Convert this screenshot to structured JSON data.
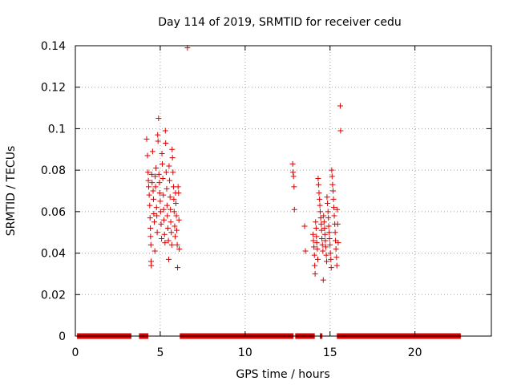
{
  "chart_data": {
    "type": "scatter",
    "title": "Day 114 of 2019, SRMTID for receiver cedu",
    "xlabel": "GPS time / hours",
    "ylabel": "SRMTID / TECUs",
    "xlim": [
      0,
      24.5
    ],
    "ylim": [
      0,
      0.14
    ],
    "grid": true,
    "marker": "+",
    "color": "#dd0000",
    "x_ticks": [
      0,
      5,
      10,
      15,
      20
    ],
    "y_ticks": [
      0,
      0.02,
      0.04,
      0.06,
      0.08,
      0.1,
      0.12,
      0.14
    ],
    "x_tick_labels": [
      "0",
      "5",
      "10",
      "15",
      "20"
    ],
    "y_tick_labels": [
      "0",
      "0.02",
      "0.04",
      "0.06",
      "0.08",
      "0.1",
      "0.12",
      "0.14"
    ],
    "zero_segments": [
      [
        0.1,
        3.3
      ],
      [
        3.75,
        4.3
      ],
      [
        6.15,
        12.85
      ],
      [
        12.95,
        14.1
      ],
      [
        14.4,
        14.55
      ],
      [
        15.4,
        22.7
      ]
    ],
    "points": [
      [
        4.2,
        0.095
      ],
      [
        4.25,
        0.087
      ],
      [
        4.28,
        0.079
      ],
      [
        4.3,
        0.075
      ],
      [
        4.32,
        0.072
      ],
      [
        4.35,
        0.068
      ],
      [
        4.38,
        0.063
      ],
      [
        4.4,
        0.057
      ],
      [
        4.42,
        0.052
      ],
      [
        4.43,
        0.048
      ],
      [
        4.45,
        0.044
      ],
      [
        4.46,
        0.036
      ],
      [
        4.47,
        0.034
      ],
      [
        4.5,
        0.078
      ],
      [
        4.52,
        0.074
      ],
      [
        4.55,
        0.089
      ],
      [
        4.58,
        0.07
      ],
      [
        4.6,
        0.066
      ],
      [
        4.62,
        0.059
      ],
      [
        4.65,
        0.055
      ],
      [
        4.68,
        0.041
      ],
      [
        4.7,
        0.077
      ],
      [
        4.72,
        0.072
      ],
      [
        4.75,
        0.081
      ],
      [
        4.78,
        0.062
      ],
      [
        4.8,
        0.058
      ],
      [
        4.82,
        0.05
      ],
      [
        4.85,
        0.097
      ],
      [
        4.87,
        0.094
      ],
      [
        4.9,
        0.105
      ],
      [
        4.92,
        0.078
      ],
      [
        4.95,
        0.074
      ],
      [
        4.97,
        0.069
      ],
      [
        5.0,
        0.065
      ],
      [
        5.02,
        0.06
      ],
      [
        5.05,
        0.054
      ],
      [
        5.08,
        0.047
      ],
      [
        5.1,
        0.088
      ],
      [
        5.12,
        0.083
      ],
      [
        5.15,
        0.076
      ],
      [
        5.18,
        0.068
      ],
      [
        5.2,
        0.061
      ],
      [
        5.22,
        0.056
      ],
      [
        5.25,
        0.049
      ],
      [
        5.28,
        0.045
      ],
      [
        5.3,
        0.099
      ],
      [
        5.32,
        0.093
      ],
      [
        5.35,
        0.079
      ],
      [
        5.38,
        0.071
      ],
      [
        5.4,
        0.063
      ],
      [
        5.42,
        0.058
      ],
      [
        5.45,
        0.052
      ],
      [
        5.48,
        0.046
      ],
      [
        5.5,
        0.037
      ],
      [
        5.52,
        0.082
      ],
      [
        5.55,
        0.075
      ],
      [
        5.58,
        0.067
      ],
      [
        5.6,
        0.061
      ],
      [
        5.62,
        0.055
      ],
      [
        5.65,
        0.05
      ],
      [
        5.68,
        0.044
      ],
      [
        5.7,
        0.09
      ],
      [
        5.72,
        0.086
      ],
      [
        5.75,
        0.079
      ],
      [
        5.78,
        0.072
      ],
      [
        5.8,
        0.066
      ],
      [
        5.82,
        0.06
      ],
      [
        5.85,
        0.053
      ],
      [
        5.88,
        0.048
      ],
      [
        5.9,
        0.069
      ],
      [
        5.92,
        0.064
      ],
      [
        5.95,
        0.058
      ],
      [
        5.97,
        0.051
      ],
      [
        6.0,
        0.044
      ],
      [
        6.02,
        0.033
      ],
      [
        6.05,
        0.072
      ],
      [
        6.08,
        0.069
      ],
      [
        6.1,
        0.056
      ],
      [
        6.12,
        0.042
      ],
      [
        6.6,
        0.139
      ],
      [
        12.8,
        0.083
      ],
      [
        12.82,
        0.079
      ],
      [
        12.85,
        0.077
      ],
      [
        12.88,
        0.072
      ],
      [
        12.9,
        0.061
      ],
      [
        13.5,
        0.053
      ],
      [
        13.55,
        0.041
      ],
      [
        14.0,
        0.049
      ],
      [
        14.02,
        0.046
      ],
      [
        14.05,
        0.043
      ],
      [
        14.08,
        0.039
      ],
      [
        14.1,
        0.034
      ],
      [
        14.12,
        0.03
      ],
      [
        14.15,
        0.055
      ],
      [
        14.18,
        0.052
      ],
      [
        14.2,
        0.048
      ],
      [
        14.22,
        0.045
      ],
      [
        14.25,
        0.042
      ],
      [
        14.28,
        0.037
      ],
      [
        14.3,
        0.076
      ],
      [
        14.32,
        0.073
      ],
      [
        14.35,
        0.069
      ],
      [
        14.38,
        0.066
      ],
      [
        14.4,
        0.063
      ],
      [
        14.42,
        0.06
      ],
      [
        14.45,
        0.057
      ],
      [
        14.48,
        0.054
      ],
      [
        14.5,
        0.051
      ],
      [
        14.52,
        0.047
      ],
      [
        14.55,
        0.044
      ],
      [
        14.58,
        0.041
      ],
      [
        14.6,
        0.027
      ],
      [
        14.62,
        0.058
      ],
      [
        14.65,
        0.055
      ],
      [
        14.68,
        0.052
      ],
      [
        14.7,
        0.049
      ],
      [
        14.72,
        0.046
      ],
      [
        14.75,
        0.043
      ],
      [
        14.78,
        0.039
      ],
      [
        14.8,
        0.036
      ],
      [
        14.82,
        0.067
      ],
      [
        14.85,
        0.064
      ],
      [
        14.88,
        0.06
      ],
      [
        14.9,
        0.057
      ],
      [
        14.92,
        0.053
      ],
      [
        14.95,
        0.05
      ],
      [
        14.97,
        0.047
      ],
      [
        15.0,
        0.044
      ],
      [
        15.02,
        0.04
      ],
      [
        15.05,
        0.037
      ],
      [
        15.07,
        0.033
      ],
      [
        15.1,
        0.08
      ],
      [
        15.12,
        0.077
      ],
      [
        15.15,
        0.073
      ],
      [
        15.18,
        0.07
      ],
      [
        15.2,
        0.066
      ],
      [
        15.22,
        0.062
      ],
      [
        15.25,
        0.058
      ],
      [
        15.28,
        0.054
      ],
      [
        15.3,
        0.05
      ],
      [
        15.32,
        0.046
      ],
      [
        15.35,
        0.042
      ],
      [
        15.38,
        0.038
      ],
      [
        15.4,
        0.034
      ],
      [
        15.42,
        0.061
      ],
      [
        15.45,
        0.054
      ],
      [
        15.48,
        0.045
      ],
      [
        15.6,
        0.111
      ],
      [
        15.62,
        0.099
      ]
    ]
  }
}
